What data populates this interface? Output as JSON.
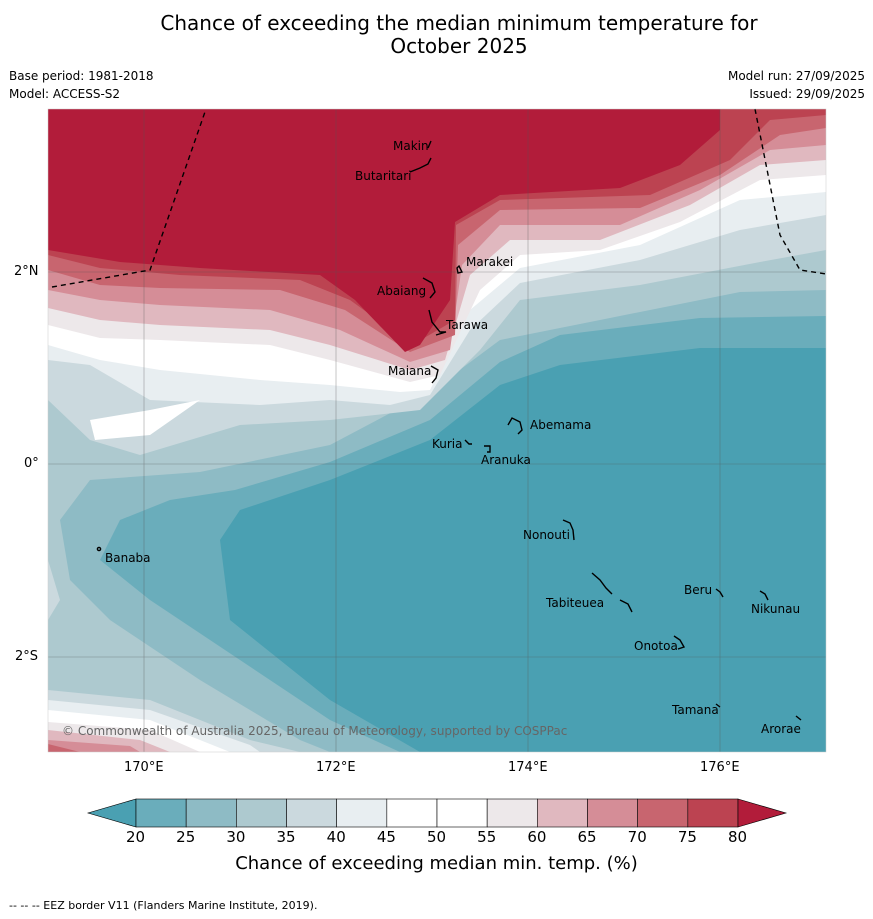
{
  "title_line1": "Chance of exceeding the median minimum temperature for",
  "title_line2": "October 2025",
  "base_period": "Base period: 1981-2018",
  "model": "Model: ACCESS-S2",
  "model_run": "Model run: 27/09/2025",
  "issued": "Issued: 29/09/2025",
  "x_ticks": [
    "170°E",
    "172°E",
    "174°E",
    "176°E"
  ],
  "y_ticks": [
    "2°N",
    "0°",
    "2°S"
  ],
  "places": {
    "makin": "Makin",
    "butaritari": "Butaritari",
    "marakei": "Marakei",
    "abaiang": "Abaiang",
    "tarawa": "Tarawa",
    "maiana": "Maiana",
    "abemama": "Abemama",
    "kuria": "Kuria",
    "aranuka": "Aranuka",
    "banaba": "Banaba",
    "nonouti": "Nonouti",
    "beru": "Beru",
    "nikunau": "Nikunau",
    "tabiteuea": "Tabiteuea",
    "onotoa": "Onotoa",
    "tamana": "Tamana",
    "arorae": "Arorae"
  },
  "copyright": "© Commonwealth of Australia 2025, Bureau of Meteorology, supported by COSPPac",
  "colorbar": {
    "labels": [
      "20",
      "25",
      "30",
      "35",
      "40",
      "45",
      "50",
      "55",
      "60",
      "65",
      "70",
      "75",
      "80"
    ],
    "colors": [
      "#4aa0b2",
      "#6aadbb",
      "#8ebbc5",
      "#adc9cf",
      "#cbd9de",
      "#e8eef1",
      "#ffffff",
      "#ffffff",
      "#ede8ea",
      "#e0b8bf",
      "#d58d97",
      "#c8656f",
      "#bc4351",
      "#b21c3a"
    ],
    "title": "Chance of exceeding median min. temp. (%)"
  },
  "footer": "--  --  -- EEZ border V11 (Flanders Marine Institute, 2019)."
}
